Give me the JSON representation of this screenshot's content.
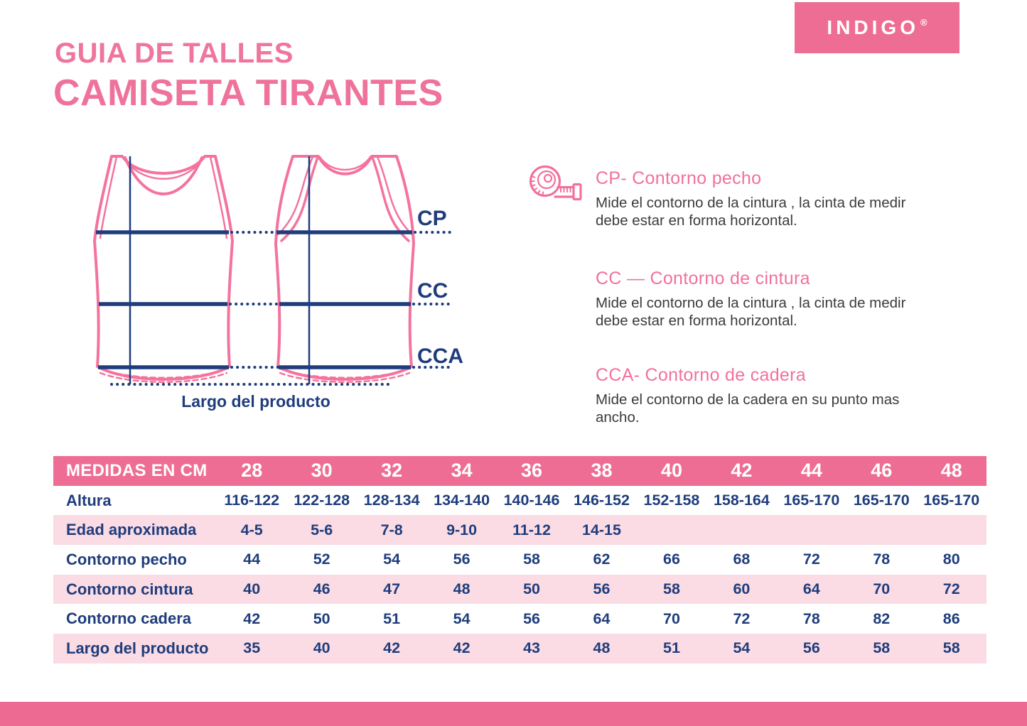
{
  "brand": {
    "logo_text": "INDIGO",
    "registered_mark": "®"
  },
  "header": {
    "title_line1": "GUIA DE TALLES",
    "title_line2": "CAMISETA TIRANTES"
  },
  "diagram": {
    "cp_label": "CP",
    "cc_label": "CC",
    "cca_label": "CCA",
    "length_label": "Largo del producto"
  },
  "measures": [
    {
      "heading": "CP- Contorno pecho",
      "body_lines": [
        "Mide el contorno de la cintura , la cinta de medir",
        "debe estar en forma horizontal."
      ]
    },
    {
      "heading": "CC — Contorno de cintura",
      "body_lines": [
        "Mide el contorno de la cintura , la cinta de medir",
        "debe estar en forma horizontal."
      ]
    },
    {
      "heading": "CCA- Contorno de cadera",
      "body_lines": [
        "Mide el contorno de la cadera en su punto mas ancho."
      ]
    }
  ],
  "table": {
    "header_label": "MEDIDAS EN CM",
    "sizes": [
      "28",
      "30",
      "32",
      "34",
      "36",
      "38",
      "40",
      "42",
      "44",
      "46",
      "48"
    ],
    "rows": [
      {
        "label": "Altura",
        "values": [
          "116-122",
          "122-128",
          "128-134",
          "134-140",
          "140-146",
          "146-152",
          "152-158",
          "158-164",
          "165-170",
          "165-170",
          "165-170"
        ]
      },
      {
        "label": "Edad aproximada",
        "values": [
          "4-5",
          "5-6",
          "7-8",
          "9-10",
          "11-12",
          "14-15",
          "",
          "",
          "",
          "",
          ""
        ]
      },
      {
        "label": "Contorno pecho",
        "values": [
          "44",
          "52",
          "54",
          "56",
          "58",
          "62",
          "66",
          "68",
          "72",
          "78",
          "80"
        ]
      },
      {
        "label": "Contorno cintura",
        "values": [
          "40",
          "46",
          "47",
          "48",
          "50",
          "56",
          "58",
          "60",
          "64",
          "70",
          "72"
        ]
      },
      {
        "label": "Contorno cadera",
        "values": [
          "42",
          "50",
          "51",
          "54",
          "56",
          "64",
          "70",
          "72",
          "78",
          "82",
          "86"
        ]
      },
      {
        "label": "Largo del producto",
        "values": [
          "35",
          "40",
          "42",
          "42",
          "43",
          "48",
          "51",
          "54",
          "56",
          "58",
          "58"
        ]
      }
    ]
  },
  "colors": {
    "brand_pink": "#ee6d94",
    "title_pink": "#f0759c",
    "outline_pink": "#f4739e",
    "light_pink_row": "#fbdbe4",
    "navy": "#1f3d7c",
    "body_text": "#3b3b3b"
  }
}
